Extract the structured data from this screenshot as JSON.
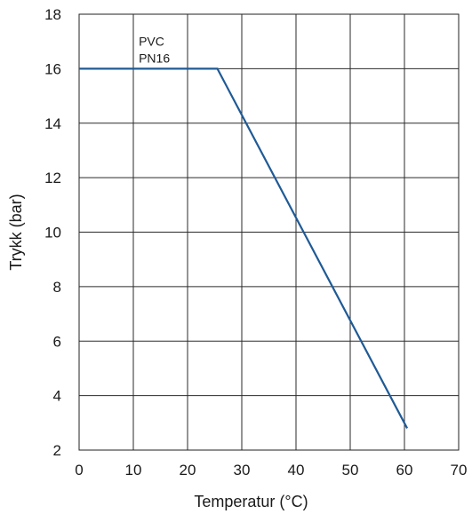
{
  "chart_data": {
    "type": "line",
    "xlabel": "Temperatur (°C)",
    "ylabel": "Trykk (bar)",
    "xlim": [
      0,
      70
    ],
    "ylim": [
      2,
      18
    ],
    "x_ticks": [
      0,
      10,
      20,
      30,
      40,
      50,
      60,
      70
    ],
    "y_ticks": [
      2,
      4,
      6,
      8,
      10,
      12,
      14,
      16,
      18
    ],
    "grid": true,
    "series": [
      {
        "x": [
          0,
          25.5,
          60.5
        ],
        "y": [
          16,
          16,
          2.8
        ],
        "color": "#1f5a96"
      }
    ],
    "annotations": [
      {
        "line1": "PVC",
        "line2": "PN16",
        "x": 11,
        "y": 16
      }
    ]
  }
}
